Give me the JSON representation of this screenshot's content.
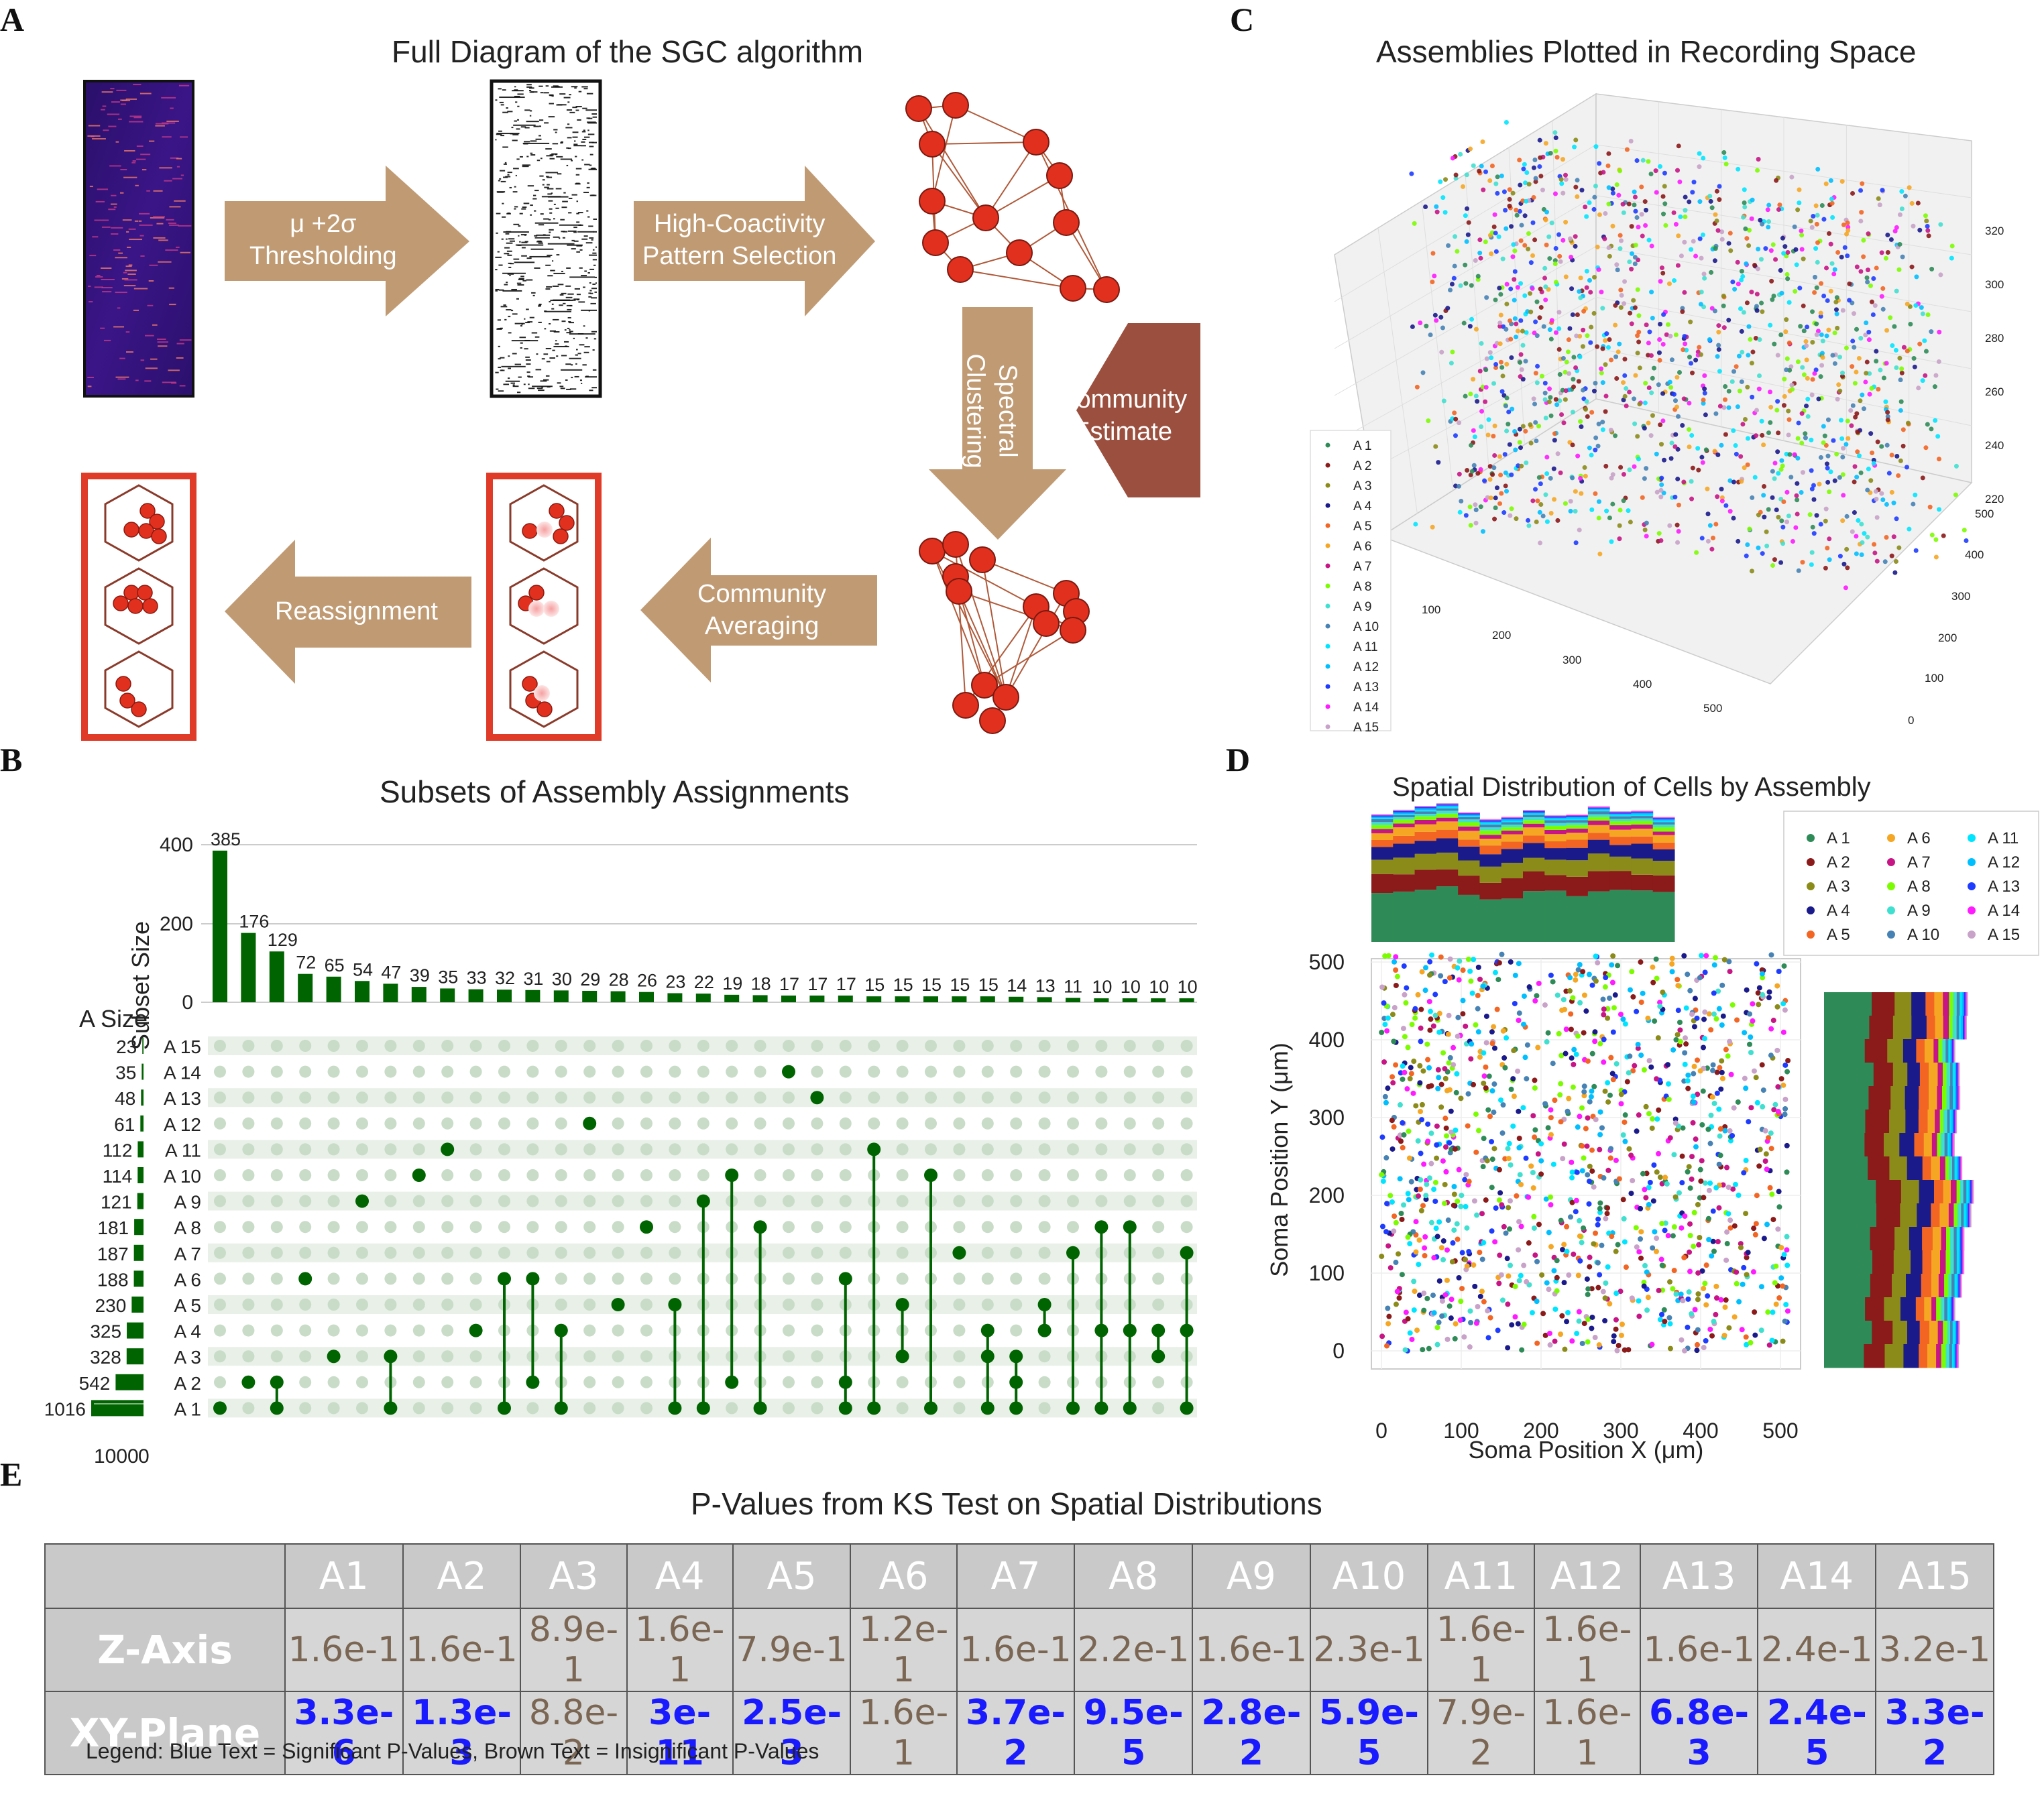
{
  "panels": {
    "a": "A",
    "b": "B",
    "c": "C",
    "d": "D",
    "e": "E"
  },
  "panel_a": {
    "title": "Full Diagram of the SGC algorithm",
    "arrow1": "μ +2σ\nThresholding",
    "arrow2": "High-Coactivity\nPattern Selection",
    "arrow3": "Spectral\nClustering",
    "arrow4": "Community\nEstimate",
    "arrow5": "Community\nAveraging",
    "arrow6": "Reassignment",
    "colors": {
      "arrow": "#c09a73",
      "estimate": "#9b4f3e",
      "node": "#e2301f",
      "box": "#e03a28"
    }
  },
  "panel_b": {
    "title": "Subsets of Assembly Assignments",
    "ylabel": "Subset Size",
    "size_label": "A Size",
    "yticks": [
      "400",
      "200",
      "0"
    ],
    "xticks": [
      "1000",
      "0"
    ]
  },
  "panel_c": {
    "title": "Assemblies Plotted in Recording Space",
    "legend": [
      "A 1",
      "A 2",
      "A 3",
      "A 4",
      "A 5",
      "A 6",
      "A 7",
      "A 8",
      "A 9",
      "A 10",
      "A 11",
      "A 12",
      "A 13",
      "A 14",
      "A 15"
    ],
    "z_ticks": [
      "320",
      "300",
      "280",
      "260",
      "240",
      "220"
    ],
    "y_ticks": [
      "500",
      "400",
      "300",
      "200",
      "100",
      "0"
    ],
    "x_ticks": [
      "100",
      "200",
      "300",
      "400",
      "500"
    ]
  },
  "panel_d": {
    "title": "Spatial Distribution of Cells by Assembly",
    "xlabel": "Soma Position X (μm)",
    "ylabel": "Soma Position Y (μm)",
    "x_ticks": [
      "0",
      "100",
      "200",
      "300",
      "400",
      "500"
    ],
    "y_ticks": [
      "500",
      "400",
      "300",
      "200",
      "100",
      "0"
    ],
    "legend": [
      "A 1",
      "A 2",
      "A 3",
      "A 4",
      "A 5",
      "A 6",
      "A 7",
      "A 8",
      "A 9",
      "A 10",
      "A 11",
      "A 12",
      "A 13",
      "A 14",
      "A 15"
    ]
  },
  "panel_e": {
    "title": "P-Values from KS Test on Spatial Distributions",
    "columns": [
      "A1",
      "A2",
      "A3",
      "A4",
      "A5",
      "A6",
      "A7",
      "A8",
      "A9",
      "A10",
      "A11",
      "A12",
      "A13",
      "A14",
      "A15"
    ],
    "rows": [
      {
        "label": "Z-Axis",
        "values": [
          "1.6e-1",
          "1.6e-1",
          "8.9e-1",
          "1.6e-1",
          "7.9e-1",
          "1.2e-1",
          "1.6e-1",
          "2.2e-1",
          "1.6e-1",
          "2.3e-1",
          "1.6e-1",
          "1.6e-1",
          "1.6e-1",
          "2.4e-1",
          "3.2e-1"
        ],
        "significant": [
          false,
          false,
          false,
          false,
          false,
          false,
          false,
          false,
          false,
          false,
          false,
          false,
          false,
          false,
          false
        ]
      },
      {
        "label": "XY-Plane",
        "values": [
          "3.3e-6",
          "1.3e-3",
          "8.8e-2",
          "3e-11",
          "2.5e-3",
          "1.6e-1",
          "3.7e-2",
          "9.5e-5",
          "2.8e-2",
          "5.9e-5",
          "7.9e-2",
          "1.6e-1",
          "6.8e-3",
          "2.4e-5",
          "3.3e-2"
        ],
        "significant": [
          true,
          true,
          false,
          true,
          true,
          false,
          true,
          true,
          true,
          true,
          false,
          false,
          true,
          true,
          true
        ]
      }
    ],
    "legend_note": "Legend: Blue Text = Significant P-Values, Brown Text = Insignificant P-Values"
  },
  "chart_data": [
    {
      "type": "bar",
      "title": "Subsets of Assembly Assignments",
      "ylabel": "Subset Size",
      "ylim": [
        0,
        420
      ],
      "values": [
        385,
        176,
        129,
        72,
        65,
        54,
        47,
        39,
        35,
        33,
        32,
        31,
        30,
        29,
        28,
        26,
        23,
        22,
        19,
        18,
        17,
        17,
        17,
        15,
        15,
        15,
        15,
        15,
        14,
        13,
        11,
        10,
        10,
        10,
        10
      ],
      "memberships": [
        [
          1
        ],
        [
          2
        ],
        [
          1,
          2
        ],
        [
          6
        ],
        [
          3
        ],
        [
          9
        ],
        [
          1,
          3
        ],
        [
          10
        ],
        [
          11
        ],
        [
          4
        ],
        [
          1,
          6
        ],
        [
          2,
          6
        ],
        [
          1,
          4
        ],
        [
          12
        ],
        [
          5
        ],
        [
          8
        ],
        [
          1,
          5
        ],
        [
          1,
          9
        ],
        [
          2,
          10
        ],
        [
          1,
          8
        ],
        [
          14
        ],
        [
          13
        ],
        [
          1,
          2,
          6
        ],
        [
          1,
          11
        ],
        [
          3,
          5
        ],
        [
          1,
          10
        ],
        [
          7
        ],
        [
          1,
          3,
          4
        ],
        [
          1,
          2,
          3
        ],
        [
          4,
          5
        ],
        [
          1,
          7
        ],
        [
          1,
          4,
          8
        ],
        [
          1,
          4,
          8
        ],
        [
          3,
          4
        ],
        [
          1,
          4,
          7
        ]
      ]
    },
    {
      "type": "bar",
      "title": "A Size",
      "categories": [
        "A 15",
        "A 14",
        "A 13",
        "A 12",
        "A 11",
        "A 10",
        "A 9",
        "A 8",
        "A 7",
        "A 6",
        "A 5",
        "A 4",
        "A 3",
        "A 2",
        "A 1"
      ],
      "values": [
        23,
        35,
        48,
        61,
        112,
        114,
        121,
        181,
        187,
        188,
        230,
        325,
        328,
        542,
        1016
      ],
      "xlim": [
        0,
        1000
      ]
    }
  ]
}
